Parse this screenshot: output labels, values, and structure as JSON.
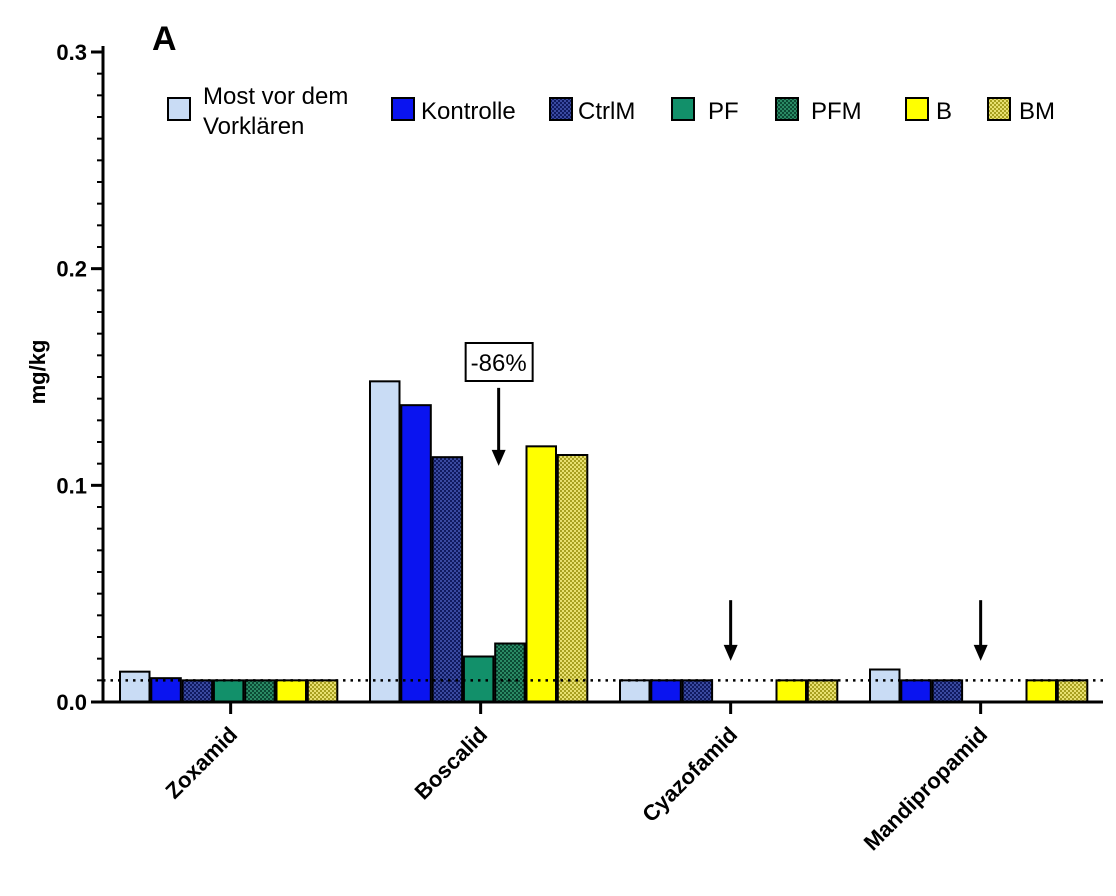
{
  "chart_data": {
    "type": "bar",
    "panel_label": "A",
    "ylabel": "mg/kg",
    "ylim": [
      0,
      0.3
    ],
    "yticks": [
      "0.0",
      "0.1",
      "0.2",
      "0.3"
    ],
    "reference_line": 0.01,
    "categories": [
      "Zoxamid",
      "Boscalid",
      "Cyazofamid",
      "Mandipropamid"
    ],
    "series": [
      {
        "name": "Most vor dem Vorklären",
        "color": "#c9dcf5",
        "pattern": "solid",
        "values": [
          0.014,
          0.148,
          0.01,
          0.015
        ]
      },
      {
        "name": "Kontrolle",
        "color": "#0a14f0",
        "pattern": "solid",
        "values": [
          0.011,
          0.137,
          0.01,
          0.01
        ]
      },
      {
        "name": "CtrlM",
        "color": "#101a60",
        "pattern": "checker",
        "values": [
          0.01,
          0.113,
          0.01,
          0.01
        ]
      },
      {
        "name": "PF",
        "color": "#12906a",
        "pattern": "solid",
        "values": [
          0.01,
          0.021,
          null,
          null
        ]
      },
      {
        "name": "PFM",
        "color": "#0f5a40",
        "pattern": "checker",
        "values": [
          0.01,
          0.027,
          null,
          null
        ]
      },
      {
        "name": "B",
        "color": "#ffff00",
        "pattern": "solid",
        "values": [
          0.01,
          0.118,
          0.01,
          0.01
        ]
      },
      {
        "name": "BM",
        "color": "#c2b82a",
        "pattern": "checker",
        "values": [
          0.01,
          0.114,
          0.01,
          0.01
        ]
      }
    ],
    "annotations": [
      {
        "text": "-86%",
        "category": "Boscalid"
      }
    ],
    "arrows": [
      {
        "category": "Boscalid",
        "from_value": 0.145,
        "to_value": 0.109
      },
      {
        "category": "Cyazofamid",
        "from_value": 0.047,
        "to_value": 0.019
      },
      {
        "category": "Mandipropamid",
        "from_value": 0.047,
        "to_value": 0.019
      }
    ]
  }
}
